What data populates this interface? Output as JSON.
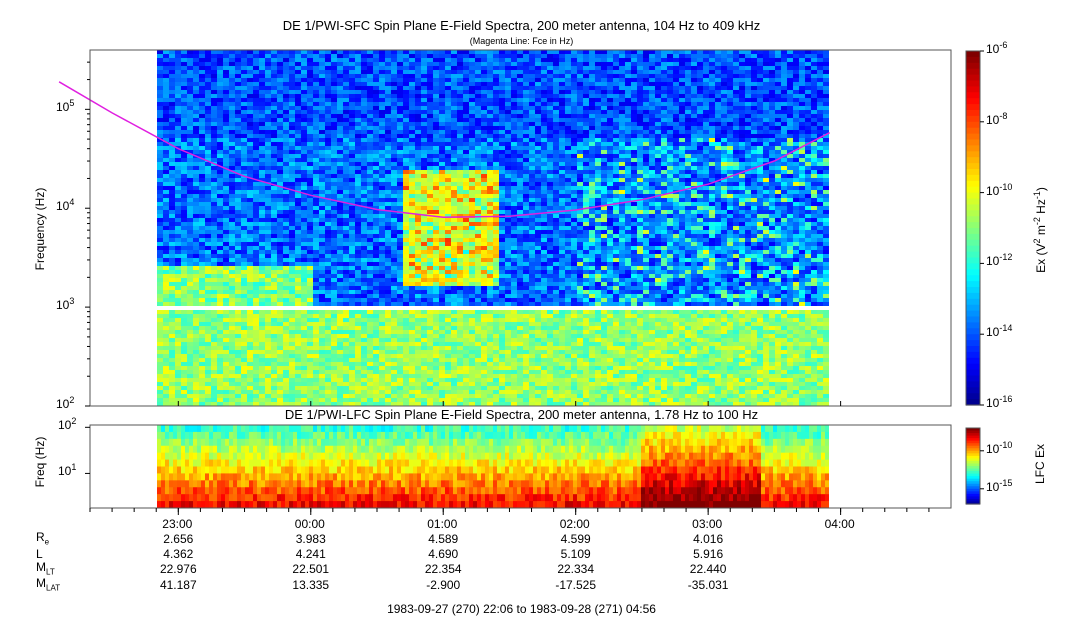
{
  "panel_top": {
    "title": "DE 1/PWI-SFC  Spin Plane E-Field Spectra, 200 meter antenna, 104 Hz to 409 kHz",
    "subtitle": "(Magenta Line: Fce in Hz)",
    "ylabel": "Frequency (Hz)",
    "yticks": [
      {
        "base": "10",
        "exp": "2",
        "log": 2
      },
      {
        "base": "10",
        "exp": "3",
        "log": 3
      },
      {
        "base": "10",
        "exp": "4",
        "log": 4
      },
      {
        "base": "10",
        "exp": "5",
        "log": 5
      }
    ],
    "colorbar": {
      "label_main": "Ex (V",
      "label_sup1": "2",
      "label_mid": " m",
      "label_sup2": "-2",
      "label_mid2": " Hz",
      "label_sup3": "-1",
      "label_end": ")",
      "ticks": [
        {
          "base": "10",
          "exp": "-6",
          "log": -6
        },
        {
          "base": "10",
          "exp": "-8",
          "log": -8
        },
        {
          "base": "10",
          "exp": "-10",
          "log": -10
        },
        {
          "base": "10",
          "exp": "-12",
          "log": -12
        },
        {
          "base": "10",
          "exp": "-14",
          "log": -14
        },
        {
          "base": "10",
          "exp": "-16",
          "log": -16
        }
      ],
      "range_log": [
        -16,
        -6
      ]
    }
  },
  "panel_bottom": {
    "title": "DE 1/PWI-LFC  Spin Plane E-Field Spectra, 200 meter antenna, 1.78 Hz to 100 Hz",
    "ylabel": "Freq (Hz)",
    "yticks": [
      {
        "base": "10",
        "exp": "1",
        "log": 1
      },
      {
        "base": "10",
        "exp": "2",
        "log": 2
      }
    ],
    "colorbar": {
      "label": "LFC Ex",
      "ticks": [
        {
          "base": "10",
          "exp": "-10",
          "log": -10
        },
        {
          "base": "10",
          "exp": "-15",
          "log": -15
        }
      ],
      "range_log": [
        -17,
        -7
      ]
    }
  },
  "xaxis": {
    "ticks": [
      "23:00",
      "00:00",
      "01:00",
      "02:00",
      "03:00",
      "04:00"
    ]
  },
  "ephemeris": {
    "rows": [
      {
        "name": "R",
        "sub": "e",
        "values": [
          "2.656",
          "3.983",
          "4.589",
          "4.599",
          "4.016"
        ]
      },
      {
        "name": "L",
        "sub": "",
        "values": [
          "4.362",
          "4.241",
          "4.690",
          "5.109",
          "5.916"
        ]
      },
      {
        "name": "M",
        "sub": "LT",
        "values": [
          "22.976",
          "22.501",
          "22.354",
          "22.334",
          "22.440"
        ]
      },
      {
        "name": "M",
        "sub": "LAT",
        "values": [
          "41.187",
          "13.335",
          "-2.900",
          "-17.525",
          "-35.031"
        ]
      }
    ]
  },
  "footer": "1983-09-27 (270) 22:06 to 1983-09-28 (271) 04:56",
  "chart_data": {
    "type": "heatmap",
    "title": "DE 1/PWI-SFC  Spin Plane E-Field Spectra, 200 meter antenna, 104 Hz to 409 kHz",
    "xlabel": "",
    "ylabel": "Frequency (Hz)",
    "time_range": [
      "1983-09-27 22:06",
      "1983-09-28 04:56"
    ],
    "x_axis_range": [
      "22:20",
      "04:50"
    ],
    "ylim_log10": [
      2,
      5.6
    ],
    "colorbar_range_log10": [
      -16,
      -6
    ],
    "fce_line": {
      "name": "Fce in Hz",
      "color": "#e020e0",
      "time": [
        "22:06",
        "22:30",
        "23:00",
        "23:30",
        "00:00",
        "00:30",
        "01:00",
        "01:30",
        "02:00",
        "02:30",
        "03:00",
        "03:30",
        "03:55"
      ],
      "freq_hz": [
        190000,
        92000,
        40000,
        21000,
        13500,
        9700,
        8100,
        8300,
        9600,
        12200,
        17500,
        30000,
        58000
      ]
    },
    "colors": {
      "fce": "#e020e0",
      "background_low": "#00008c",
      "high": "#ff2000"
    }
  }
}
